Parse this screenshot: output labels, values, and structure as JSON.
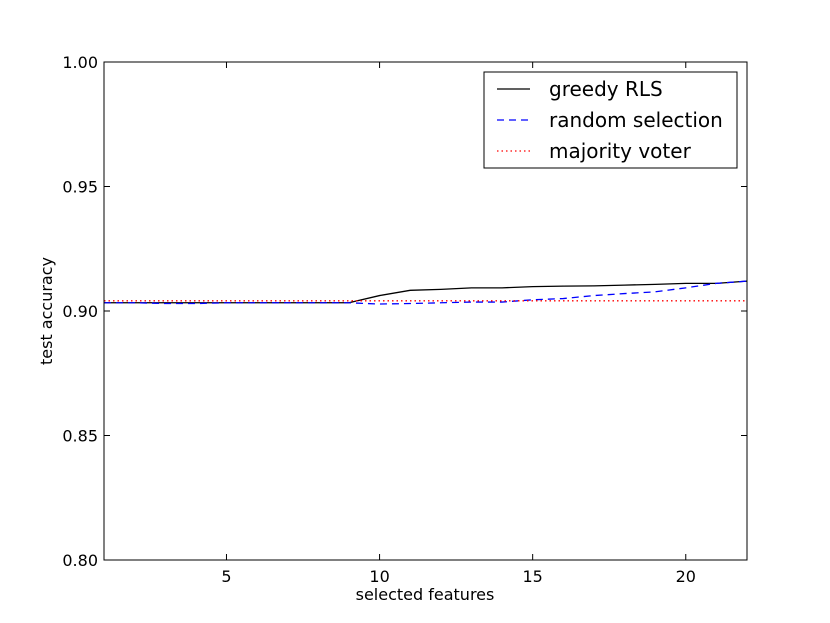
{
  "chart_data": {
    "type": "line",
    "xlabel": "selected features",
    "ylabel": "test accuracy",
    "xlim": [
      1,
      22
    ],
    "ylim": [
      0.8,
      1.0
    ],
    "x_ticks": [
      5,
      10,
      15,
      20
    ],
    "x_tick_labels": [
      "5",
      "10",
      "15",
      "20"
    ],
    "y_ticks": [
      0.8,
      0.85,
      0.9,
      0.95,
      1.0
    ],
    "y_tick_labels": [
      "0.80",
      "0.85",
      "0.90",
      "0.95",
      "1.00"
    ],
    "grid": false,
    "legend_position": "top-right",
    "series": [
      {
        "name": "greedy RLS",
        "color": "#000000",
        "style": "solid",
        "x": [
          1,
          2,
          3,
          4,
          5,
          6,
          7,
          8,
          9,
          10,
          11,
          12,
          13,
          14,
          15,
          16,
          17,
          18,
          19,
          20,
          21,
          22
        ],
        "values": [
          0.9033,
          0.9033,
          0.9033,
          0.9033,
          0.9033,
          0.9033,
          0.9033,
          0.9033,
          0.9033,
          0.9062,
          0.9083,
          0.9087,
          0.9093,
          0.9093,
          0.9098,
          0.91,
          0.9101,
          0.9104,
          0.9107,
          0.9111,
          0.9111,
          0.912
        ]
      },
      {
        "name": "random selection",
        "color": "#0000ff",
        "style": "dashed",
        "x": [
          1,
          2,
          3,
          4,
          5,
          6,
          7,
          8,
          9,
          10,
          11,
          12,
          13,
          14,
          15,
          16,
          17,
          18,
          19,
          20,
          21,
          22
        ],
        "values": [
          0.9033,
          0.9033,
          0.903,
          0.903,
          0.9033,
          0.9033,
          0.9033,
          0.9033,
          0.9033,
          0.9028,
          0.903,
          0.9033,
          0.9036,
          0.9036,
          0.9045,
          0.905,
          0.9062,
          0.907,
          0.9077,
          0.9093,
          0.9111,
          0.912
        ]
      },
      {
        "name": "majority voter",
        "color": "#ff0000",
        "style": "dotted",
        "x": [
          1,
          22
        ],
        "values": [
          0.9041,
          0.9041
        ]
      }
    ]
  }
}
